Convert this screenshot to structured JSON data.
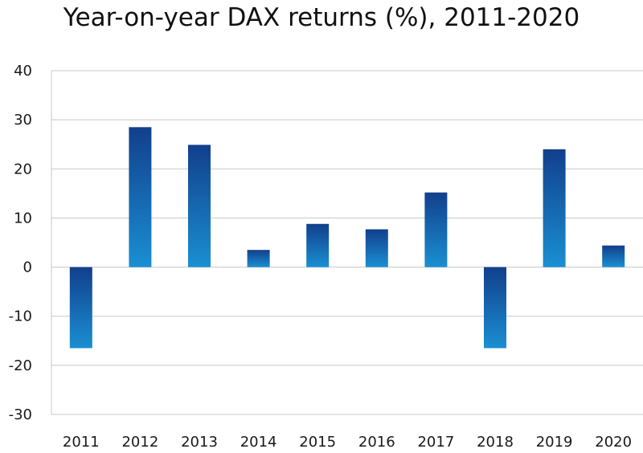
{
  "chart_data": {
    "type": "bar",
    "title": "Year-on-year DAX returns (%), 2011-2020",
    "xlabel": "",
    "ylabel": "",
    "categories": [
      "2011",
      "2012",
      "2013",
      "2014",
      "2015",
      "2016",
      "2017",
      "2018",
      "2019",
      "2020"
    ],
    "values": [
      -16.5,
      28.5,
      24.9,
      3.5,
      8.8,
      7.7,
      15.2,
      -16.5,
      24.0,
      4.4
    ],
    "ylim": [
      -30,
      40
    ],
    "yticks": [
      40,
      30,
      20,
      10,
      0,
      -10,
      -20,
      -30
    ],
    "ytick_labels": [
      "40",
      "30",
      "20",
      "10",
      "0",
      "-10",
      "-20",
      "-30"
    ],
    "grid": true,
    "legend": false,
    "colors": {
      "bar_top": "#123f8c",
      "bar_bottom": "#1a8fd2",
      "grid": "#c8c8c8",
      "text": "#111111"
    }
  }
}
